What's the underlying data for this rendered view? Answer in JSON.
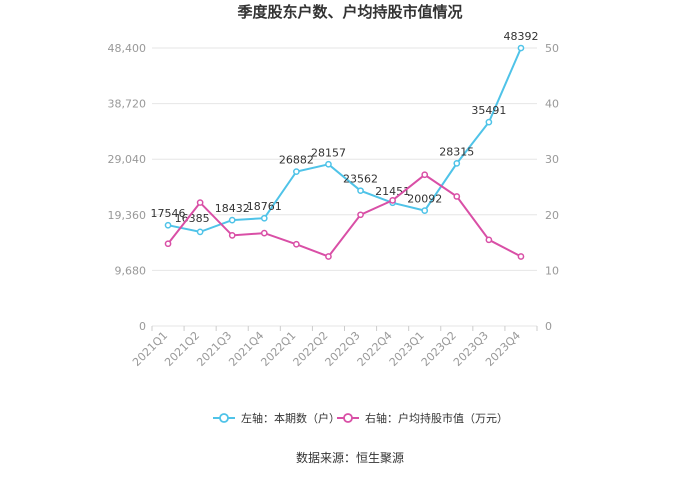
{
  "chart_data": {
    "type": "line",
    "title": "季度股东户数、户均持股市值情况",
    "categories": [
      "2021Q1",
      "2021Q2",
      "2021Q3",
      "2021Q4",
      "2022Q1",
      "2022Q2",
      "2022Q3",
      "2022Q4",
      "2023Q1",
      "2023Q2",
      "2023Q3",
      "2023Q4"
    ],
    "left_axis": {
      "ticks": [
        "0",
        "9,680",
        "19,360",
        "29,040",
        "38,720",
        "48,400"
      ],
      "range": [
        0,
        48400
      ]
    },
    "right_axis": {
      "ticks": [
        "0",
        "10",
        "20",
        "30",
        "40",
        "50"
      ],
      "range": [
        0,
        50
      ]
    },
    "grid": true,
    "legend_position": "bottom",
    "series": [
      {
        "name": "左轴：本期数（户）",
        "axis": "left",
        "color": "#4fc3e8",
        "values": [
          17546,
          16385,
          18432,
          18761,
          26882,
          28157,
          23562,
          21451,
          20092,
          28315,
          35491,
          48392
        ],
        "labels": [
          "17546",
          "16385",
          "18432",
          "18761",
          "26882",
          "28157",
          "23562",
          "21451",
          "20092",
          "28315",
          "35491",
          "48392"
        ]
      },
      {
        "name": "右轴：户均持股市值（万元）",
        "axis": "right",
        "color": "#d94fa6",
        "values": [
          14.8,
          22.2,
          16.3,
          16.7,
          14.7,
          12.5,
          20.0,
          22.6,
          27.2,
          23.3,
          15.5,
          12.5
        ]
      }
    ]
  },
  "source_text": "数据来源：恒生聚源"
}
